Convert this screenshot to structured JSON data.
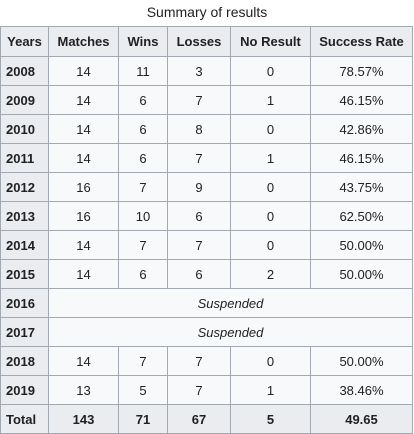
{
  "caption": "Summary of results",
  "headers": [
    "Years",
    "Matches",
    "Wins",
    "Losses",
    "No Result",
    "Success Rate"
  ],
  "rows": [
    {
      "year": "2008",
      "matches": "14",
      "wins": "11",
      "losses": "3",
      "no_result": "0",
      "success_rate": "78.57%"
    },
    {
      "year": "2009",
      "matches": "14",
      "wins": "6",
      "losses": "7",
      "no_result": "1",
      "success_rate": "46.15%"
    },
    {
      "year": "2010",
      "matches": "14",
      "wins": "6",
      "losses": "8",
      "no_result": "0",
      "success_rate": "42.86%"
    },
    {
      "year": "2011",
      "matches": "14",
      "wins": "6",
      "losses": "7",
      "no_result": "1",
      "success_rate": "46.15%"
    },
    {
      "year": "2012",
      "matches": "16",
      "wins": "7",
      "losses": "9",
      "no_result": "0",
      "success_rate": "43.75%"
    },
    {
      "year": "2013",
      "matches": "16",
      "wins": "10",
      "losses": "6",
      "no_result": "0",
      "success_rate": "62.50%"
    },
    {
      "year": "2014",
      "matches": "14",
      "wins": "7",
      "losses": "7",
      "no_result": "0",
      "success_rate": "50.00%"
    },
    {
      "year": "2015",
      "matches": "14",
      "wins": "6",
      "losses": "6",
      "no_result": "2",
      "success_rate": "50.00%"
    },
    {
      "year": "2016",
      "suspended": "Suspended"
    },
    {
      "year": "2017",
      "suspended": "Suspended"
    },
    {
      "year": "2018",
      "matches": "14",
      "wins": "7",
      "losses": "7",
      "no_result": "0",
      "success_rate": "50.00%"
    },
    {
      "year": "2019",
      "matches": "13",
      "wins": "5",
      "losses": "7",
      "no_result": "1",
      "success_rate": "38.46%"
    }
  ],
  "total": {
    "label": "Total",
    "matches": "143",
    "wins": "71",
    "losses": "67",
    "no_result": "5",
    "success_rate": "49.65"
  },
  "colors": {
    "header_bg": "#eaecf0",
    "cell_bg": "#f8f9fa",
    "border": "#a2a9b1",
    "text": "#202122"
  }
}
